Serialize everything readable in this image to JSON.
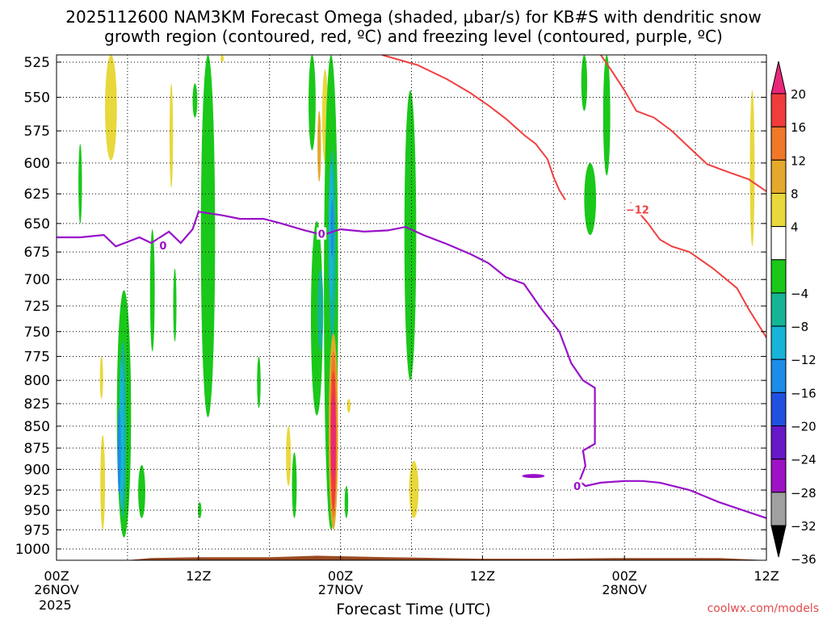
{
  "chart_data": {
    "type": "heatmap",
    "title_line1": "2025112600 NAM3KM Forecast Omega (shaded, μbar/s) for KB#S with dendritic snow",
    "title_line2": "growth region (contoured, red, ºC) and freezing level (contoured, purple, ºC)",
    "xlabel": "Forecast Time (UTC)",
    "x_ticks": [
      {
        "hour": 0,
        "label": "00Z",
        "date": "26NOV",
        "year": "2025"
      },
      {
        "hour": 12,
        "label": "12Z"
      },
      {
        "hour": 24,
        "label": "00Z",
        "date": "27NOV"
      },
      {
        "hour": 36,
        "label": "12Z"
      },
      {
        "hour": 48,
        "label": "00Z",
        "date": "28NOV"
      },
      {
        "hour": 60,
        "label": "12Z"
      }
    ],
    "xlim_hours": [
      0,
      60
    ],
    "ylabel": "",
    "y_ticks": [
      525,
      550,
      575,
      600,
      625,
      650,
      675,
      700,
      725,
      750,
      775,
      800,
      825,
      850,
      875,
      900,
      925,
      950,
      975,
      1000
    ],
    "ylim_hPa": [
      1000,
      520
    ],
    "y_scale": "log",
    "grid": true,
    "colorbar": {
      "ticks": [
        "20",
        "16",
        "12",
        "8",
        "4",
        "−4",
        "−8",
        "−12",
        "−16",
        "−20",
        "−24",
        "−28",
        "−32",
        "−36"
      ],
      "colors": [
        "#e8287a",
        "#f03c3c",
        "#f07828",
        "#e4a82c",
        "#e8d83c",
        "#ffffff",
        "#1ac81a",
        "#16b496",
        "#18b4d8",
        "#1c8ce8",
        "#2050e0",
        "#6818c8",
        "#9c12c4",
        "#a0a0a0",
        "#000000"
      ]
    },
    "freezing_level_label": "0",
    "dgz_label": "−12",
    "contour_colors": {
      "dgz": "#f04040",
      "freezing": "#9810c8",
      "terrain": "#9a4a22"
    },
    "freezing_level_hPa": [
      {
        "h": 0.0,
        "p": 662
      },
      {
        "h": 2.0,
        "p": 662
      },
      {
        "h": 4.0,
        "p": 660
      },
      {
        "h": 5.0,
        "p": 670
      },
      {
        "h": 6.0,
        "p": 666
      },
      {
        "h": 7.0,
        "p": 662
      },
      {
        "h": 8.0,
        "p": 667
      },
      {
        "h": 9.5,
        "p": 657
      },
      {
        "h": 10.5,
        "p": 667
      },
      {
        "h": 11.5,
        "p": 655
      },
      {
        "h": 12.0,
        "p": 640
      },
      {
        "h": 14.0,
        "p": 643
      },
      {
        "h": 15.5,
        "p": 646
      },
      {
        "h": 17.5,
        "p": 646
      },
      {
        "h": 19.0,
        "p": 650
      },
      {
        "h": 21.0,
        "p": 656
      },
      {
        "h": 22.5,
        "p": 660
      },
      {
        "h": 24.0,
        "p": 655
      },
      {
        "h": 26.0,
        "p": 657
      },
      {
        "h": 28.0,
        "p": 656
      },
      {
        "h": 29.5,
        "p": 653
      },
      {
        "h": 31.0,
        "p": 660
      },
      {
        "h": 33.0,
        "p": 668
      },
      {
        "h": 35.0,
        "p": 677
      },
      {
        "h": 36.5,
        "p": 685
      },
      {
        "h": 38.0,
        "p": 698
      },
      {
        "h": 39.5,
        "p": 704
      },
      {
        "h": 41.0,
        "p": 728
      },
      {
        "h": 42.5,
        "p": 750
      },
      {
        "h": 43.5,
        "p": 782
      },
      {
        "h": 44.5,
        "p": 800
      },
      {
        "h": 45.5,
        "p": 808
      },
      {
        "h": 45.5,
        "p": 870
      },
      {
        "h": 44.5,
        "p": 878
      },
      {
        "h": 44.7,
        "p": 896
      },
      {
        "h": 44.2,
        "p": 914
      },
      {
        "h": 44.7,
        "p": 920
      },
      {
        "h": 46.0,
        "p": 916
      },
      {
        "h": 48.0,
        "p": 914
      },
      {
        "h": 49.5,
        "p": 914
      },
      {
        "h": 51.0,
        "p": 916
      },
      {
        "h": 53.5,
        "p": 925
      },
      {
        "h": 56.0,
        "p": 940
      },
      {
        "h": 58.0,
        "p": 950
      },
      {
        "h": 60.0,
        "p": 960
      }
    ],
    "dgz_minus12_upper_hPa": [
      {
        "h": 27.5,
        "p": 520
      },
      {
        "h": 30.5,
        "p": 527
      },
      {
        "h": 33.0,
        "p": 537
      },
      {
        "h": 35.0,
        "p": 547
      },
      {
        "h": 36.5,
        "p": 556
      },
      {
        "h": 38.0,
        "p": 566
      },
      {
        "h": 39.5,
        "p": 578
      },
      {
        "h": 40.5,
        "p": 585
      },
      {
        "h": 41.5,
        "p": 597
      },
      {
        "h": 42.0,
        "p": 611
      },
      {
        "h": 42.5,
        "p": 622
      },
      {
        "h": 43.0,
        "p": 630
      }
    ],
    "dgz_minus12_lower_hPa": [
      {
        "h": 46.0,
        "p": 520
      },
      {
        "h": 47.0,
        "p": 532
      },
      {
        "h": 48.0,
        "p": 545
      },
      {
        "h": 49.0,
        "p": 560
      },
      {
        "h": 50.5,
        "p": 565
      },
      {
        "h": 52.0,
        "p": 575
      },
      {
        "h": 53.5,
        "p": 588
      },
      {
        "h": 55.0,
        "p": 601
      },
      {
        "h": 57.0,
        "p": 608
      },
      {
        "h": 58.5,
        "p": 613
      },
      {
        "h": 60.0,
        "p": 623
      }
    ],
    "dgz_minus12_right_hPa": [
      {
        "h": 48.5,
        "p": 632
      },
      {
        "h": 50.0,
        "p": 650
      },
      {
        "h": 51.0,
        "p": 664
      },
      {
        "h": 52.0,
        "p": 670
      },
      {
        "h": 53.5,
        "p": 675
      },
      {
        "h": 55.5,
        "p": 690
      },
      {
        "h": 57.5,
        "p": 708
      },
      {
        "h": 58.5,
        "p": 728
      },
      {
        "h": 60.0,
        "p": 756
      }
    ],
    "omega_regions": [
      {
        "value": 4,
        "h": 4.6,
        "p1": 520,
        "p2": 598,
        "w": 1.0
      },
      {
        "value": 4,
        "h": 9.7,
        "p1": 540,
        "p2": 620,
        "w": 0.3
      },
      {
        "value": 4,
        "h": 3.9,
        "p1": 860,
        "p2": 975,
        "w": 0.4
      },
      {
        "value": 4,
        "h": 3.8,
        "p1": 775,
        "p2": 820,
        "w": 0.2
      },
      {
        "value": 4,
        "h": 19.6,
        "p1": 850,
        "p2": 920,
        "w": 0.4
      },
      {
        "value": 4,
        "h": 22.7,
        "p1": 530,
        "p2": 600,
        "w": 0.5
      },
      {
        "value": 4,
        "h": 24.7,
        "p1": 820,
        "p2": 835,
        "w": 0.3
      },
      {
        "value": 4,
        "h": 30.2,
        "p1": 890,
        "p2": 960,
        "w": 0.8
      },
      {
        "value": 4,
        "h": 58.8,
        "p1": 545,
        "p2": 670,
        "w": 0.4
      },
      {
        "value": 4,
        "h": 14.0,
        "p1": 520,
        "p2": 525,
        "w": 0.2
      },
      {
        "value": -4,
        "h": 5.7,
        "p1": 710,
        "p2": 985,
        "w": 1.2
      },
      {
        "value": -4,
        "h": 7.2,
        "p1": 895,
        "p2": 960,
        "w": 0.6
      },
      {
        "value": -4,
        "h": 2.0,
        "p1": 585,
        "p2": 650,
        "w": 0.3
      },
      {
        "value": -4,
        "h": 8.1,
        "p1": 655,
        "p2": 770,
        "w": 0.4
      },
      {
        "value": -4,
        "h": 10.0,
        "p1": 690,
        "p2": 760,
        "w": 0.2
      },
      {
        "value": -4,
        "h": 12.8,
        "p1": 520,
        "p2": 840,
        "w": 1.2
      },
      {
        "value": -4,
        "h": 11.7,
        "p1": 540,
        "p2": 565,
        "w": 0.4
      },
      {
        "value": -4,
        "h": 12.1,
        "p1": 940,
        "p2": 960,
        "w": 0.3
      },
      {
        "value": -4,
        "h": 17.1,
        "p1": 775,
        "p2": 830,
        "w": 0.3
      },
      {
        "value": -4,
        "h": 21.6,
        "p1": 520,
        "p2": 590,
        "w": 0.6
      },
      {
        "value": -4,
        "h": 22.0,
        "p1": 648,
        "p2": 838,
        "w": 1.0
      },
      {
        "value": -4,
        "h": 20.1,
        "p1": 880,
        "p2": 960,
        "w": 0.4
      },
      {
        "value": -4,
        "h": 23.2,
        "p1": 520,
        "p2": 975,
        "w": 1.2
      },
      {
        "value": -4,
        "h": 24.5,
        "p1": 920,
        "p2": 960,
        "w": 0.3
      },
      {
        "value": -4,
        "h": 29.9,
        "p1": 545,
        "p2": 800,
        "w": 1.0
      },
      {
        "value": -4,
        "h": 44.6,
        "p1": 520,
        "p2": 560,
        "w": 0.5
      },
      {
        "value": -4,
        "h": 46.5,
        "p1": 520,
        "p2": 610,
        "w": 0.6
      },
      {
        "value": -4,
        "h": 45.1,
        "p1": 600,
        "p2": 660,
        "w": 1.0
      },
      {
        "value": -8,
        "h": 5.6,
        "p1": 760,
        "p2": 960,
        "w": 0.6
      },
      {
        "value": -8,
        "h": 22.3,
        "p1": 690,
        "p2": 770,
        "w": 0.5
      },
      {
        "value": -8,
        "h": 23.3,
        "p1": 590,
        "p2": 760,
        "w": 0.6
      },
      {
        "value": -12,
        "h": 5.5,
        "p1": 780,
        "p2": 950,
        "w": 0.4
      },
      {
        "value": -12,
        "h": 23.2,
        "p1": 600,
        "p2": 720,
        "w": 0.4
      },
      {
        "value": -16,
        "h": 5.3,
        "p1": 830,
        "p2": 930,
        "w": 0.15
      },
      {
        "value": -16,
        "h": 23.3,
        "p1": 630,
        "p2": 680,
        "w": 0.2
      },
      {
        "value": 8,
        "h": 23.4,
        "p1": 752,
        "p2": 975,
        "w": 0.8
      },
      {
        "value": 8,
        "h": 22.2,
        "p1": 560,
        "p2": 615,
        "w": 0.3
      },
      {
        "value": 12,
        "h": 23.4,
        "p1": 770,
        "p2": 960,
        "w": 0.55
      },
      {
        "value": 16,
        "h": 23.4,
        "p1": 790,
        "p2": 950,
        "w": 0.45
      },
      {
        "value": 20,
        "h": 23.4,
        "p1": 815,
        "p2": 915,
        "w": 0.35
      }
    ],
    "terrain_hPa": [
      {
        "h": 0,
        "p": 1015
      },
      {
        "h": 6,
        "p": 1015
      },
      {
        "h": 8,
        "p": 1012
      },
      {
        "h": 12,
        "p": 1011
      },
      {
        "h": 18,
        "p": 1011
      },
      {
        "h": 22,
        "p": 1009
      },
      {
        "h": 28,
        "p": 1011
      },
      {
        "h": 36,
        "p": 1013
      },
      {
        "h": 42,
        "p": 1013
      },
      {
        "h": 48,
        "p": 1012
      },
      {
        "h": 56,
        "p": 1012
      },
      {
        "h": 60,
        "p": 1015
      }
    ],
    "extra_features": {
      "purple_blob": {
        "h": 40.3,
        "p": 908
      }
    }
  },
  "footer": {
    "credit": "coolwx.com/models"
  }
}
